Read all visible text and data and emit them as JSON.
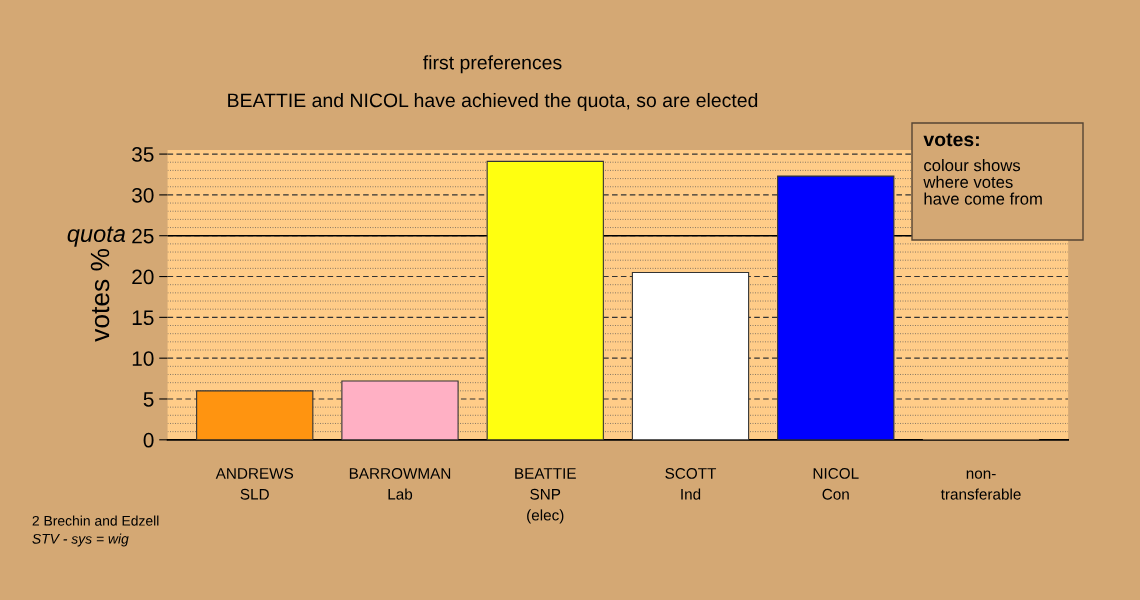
{
  "chart_data": {
    "type": "bar",
    "title": "first preferences",
    "subtitle": "BEATTIE and NICOL have achieved the quota, so are elected",
    "ylabel": "votes %",
    "categories": [
      "ANDREWS\nSLD",
      "BARROWMAN\nLab",
      "BEATTIE\nSNP\n(elec)",
      "SCOTT\nInd",
      "NICOL\nCon",
      "non-\ntransferable"
    ],
    "values": [
      6.0,
      7.2,
      34.1,
      20.5,
      32.3,
      0
    ],
    "colors": [
      "#ff9410",
      "#ffb0c4",
      "#ffff10",
      "#ffffff",
      "#0000ff",
      "#d4a874"
    ],
    "ylim": [
      0,
      35.5
    ],
    "yticks": [
      0,
      5,
      10,
      15,
      20,
      25,
      30,
      35
    ],
    "grid": "y",
    "ref_lines": [
      {
        "axis": "y",
        "value": 25,
        "label": "quota",
        "color": "#000000",
        "line_style": "solid"
      }
    ],
    "annotations": [
      "votes:",
      "colour shows\nwhere votes\nhave come from",
      "2 Brechin and Edzell",
      "STV - sys = wig"
    ]
  }
}
